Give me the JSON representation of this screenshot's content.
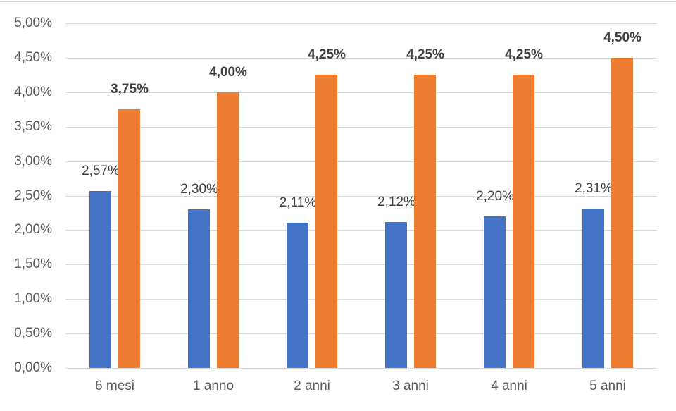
{
  "chart_data": {
    "type": "bar",
    "title": "",
    "xlabel": "",
    "ylabel": "",
    "categories": [
      "6 mesi",
      "1 anno",
      "2 anni",
      "3 anni",
      "4 anni",
      "5 anni"
    ],
    "series": [
      {
        "name": "blue-series",
        "color": "#4472C4",
        "values": [
          2.57,
          2.3,
          2.11,
          2.12,
          2.2,
          2.31
        ],
        "labels": [
          "2,57%",
          "2,30%",
          "2,11%",
          "2,12%",
          "2,20%",
          "2,31%"
        ],
        "label_bold": false
      },
      {
        "name": "orange-series",
        "color": "#ED7D31",
        "values": [
          3.75,
          4.0,
          4.25,
          4.25,
          4.25,
          4.5
        ],
        "labels": [
          "3,75%",
          "4,00%",
          "4,25%",
          "4,25%",
          "4,25%",
          "4,50%"
        ],
        "label_bold": true
      }
    ],
    "ylim": [
      0,
      5
    ],
    "y_tick_values": [
      0,
      0.5,
      1,
      1.5,
      2,
      2.5,
      3,
      3.5,
      4,
      4.5,
      5
    ],
    "y_tick_labels": [
      "0,00%",
      "0,50%",
      "1,00%",
      "1,50%",
      "2,00%",
      "2,50%",
      "3,00%",
      "3,50%",
      "4,00%",
      "4,50%",
      "5,00%"
    ],
    "grid": true,
    "legend_position": "none",
    "number_format": "italian-percent"
  },
  "colors": {
    "background": "#FFFFFF",
    "gridline": "#D9D9D9",
    "chart_border": "#D9D9D9",
    "axis_text": "#595959",
    "data_label_text": "#404040"
  }
}
